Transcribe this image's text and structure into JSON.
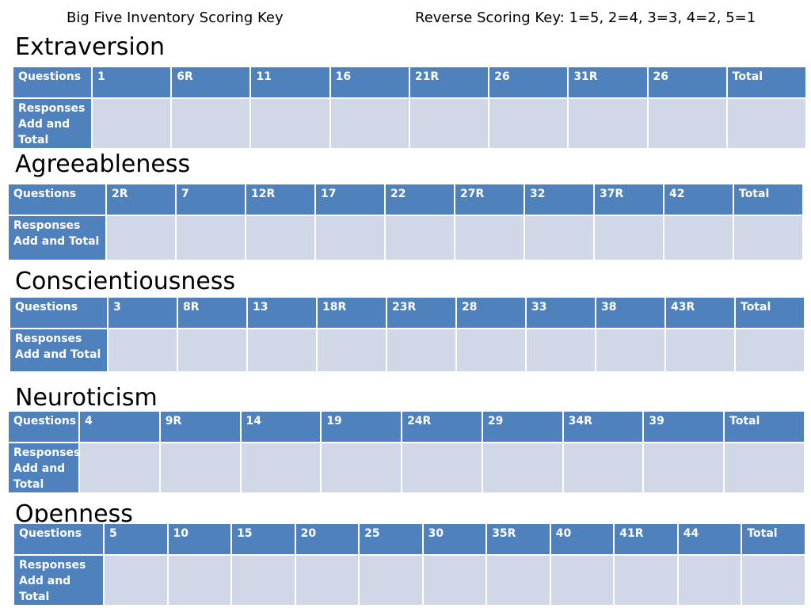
{
  "header": {
    "left": "Big Five Inventory Scoring Key",
    "right": "Reverse Scoring Key:  1=5, 2=4, 3=3, 4=2, 5=1"
  },
  "row_labels": {
    "questions": "Questions",
    "total": "Total"
  },
  "sections": [
    {
      "title": "Extraversion",
      "responses_label": "Responses Add and Total",
      "items": [
        "1",
        "6R",
        "11",
        "16",
        "21R",
        "26",
        "31R",
        "26"
      ]
    },
    {
      "title": "Agreeableness",
      "responses_label": "Responses Add and Total",
      "items": [
        "2R",
        "7",
        "12R",
        "17",
        "22",
        "27R",
        "32",
        "37R",
        "42"
      ]
    },
    {
      "title": "Conscientiousness",
      "responses_label": "Responses Add and Total",
      "items": [
        "3",
        "8R",
        "13",
        "18R",
        "23R",
        "28",
        "33",
        "38",
        "43R"
      ]
    },
    {
      "title": "Neuroticism",
      "responses_label": "Responses Add and Total",
      "items": [
        "4",
        "9R",
        "14",
        "19",
        "24R",
        "29",
        "34R",
        "39"
      ]
    },
    {
      "title": "Openness",
      "responses_label": "Responses Add and Total",
      "items": [
        "5",
        "10",
        "15",
        "20",
        "25",
        "30",
        "35R",
        "40",
        "41R",
        "44"
      ]
    }
  ],
  "colors": {
    "header_cell": "#4f81bd",
    "response_cell": "#d0d8e8"
  }
}
